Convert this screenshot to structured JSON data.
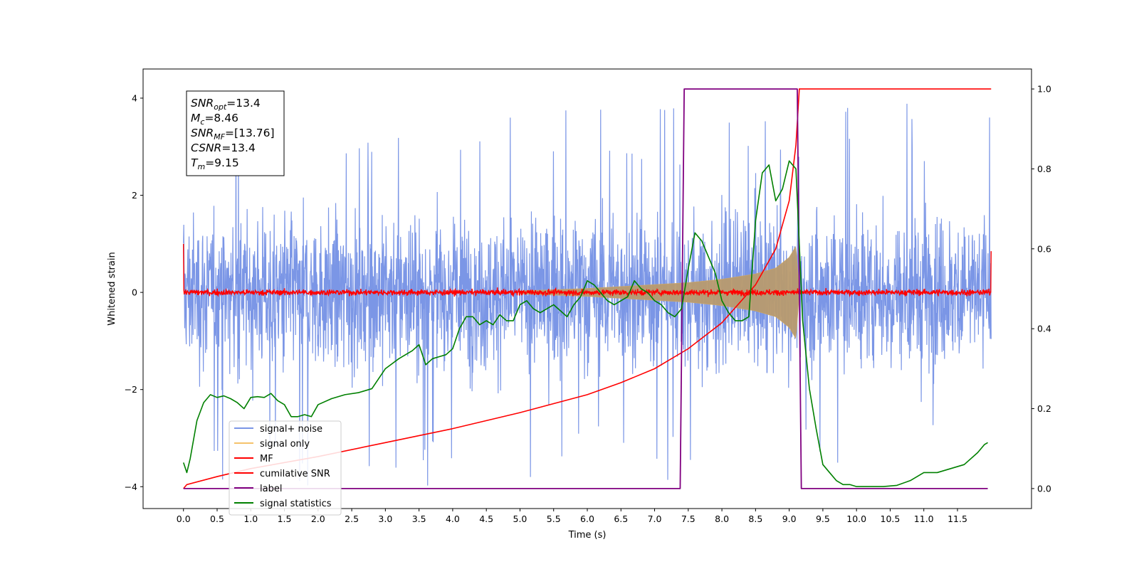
{
  "chart_data": {
    "type": "line",
    "xlabel": "Time (s)",
    "ylabel_left": "Whitened strain",
    "xlim": [
      -0.6,
      12.6
    ],
    "ylim_left": [
      -4.45,
      4.6
    ],
    "ylim_right": [
      -0.05,
      1.05
    ],
    "x_ticks": [
      0.0,
      0.5,
      1.0,
      1.5,
      2.0,
      2.5,
      3.0,
      3.5,
      4.0,
      4.5,
      5.0,
      5.5,
      6.0,
      6.5,
      7.0,
      7.5,
      8.0,
      8.5,
      9.0,
      9.5,
      10.0,
      10.5,
      11.0,
      11.5
    ],
    "x_tick_labels": [
      "0.0",
      "0.5",
      "1.0",
      "1.5",
      "2.0",
      "2.5",
      "3.0",
      "3.5",
      "4.0",
      "4.5",
      "5.0",
      "5.5",
      "6.0",
      "6.5",
      "7.0",
      "7.5",
      "8.0",
      "8.5",
      "9.0",
      "9.5",
      "10.0",
      "10.5",
      "11.0",
      "11.5"
    ],
    "y_ticks_left": [
      -4,
      -2,
      0,
      2,
      4
    ],
    "y_tick_labels_left": [
      "−4",
      "−2",
      "0",
      "2",
      "4"
    ],
    "y_ticks_right": [
      0.0,
      0.2,
      0.4,
      0.6,
      0.8,
      1.0
    ],
    "y_tick_labels_right": [
      "0.0",
      "0.2",
      "0.4",
      "0.6",
      "0.8",
      "1.0"
    ],
    "legend_position": "lower-left",
    "info_box": {
      "lines": [
        {
          "base": "SNR",
          "sub": "opt",
          "rest": "=13.4"
        },
        {
          "base": "M",
          "sub": "c",
          "rest": "=8.46"
        },
        {
          "base": "SNR",
          "sub": "MF",
          "rest": "=[13.76]"
        },
        {
          "base": "CSNR",
          "sub": "",
          "rest": "=13.4"
        },
        {
          "base": "T",
          "sub": "m",
          "rest": "=9.15"
        }
      ]
    },
    "series": [
      {
        "name": "signal+ noise",
        "axis": "left",
        "color": "#7b96e6",
        "kind": "noise-band",
        "x_range": [
          0.0,
          12.0
        ],
        "amplitude_typical": 1.5,
        "amplitude_max": 4.0
      },
      {
        "name": "signal only",
        "axis": "left",
        "color": "#f5c26b",
        "kind": "chirp-envelope",
        "x_range": [
          5.0,
          9.15
        ],
        "envelope": {
          "x": [
            5.0,
            6.0,
            7.0,
            7.5,
            8.0,
            8.5,
            8.8,
            9.0,
            9.1,
            9.15
          ],
          "amp": [
            0.03,
            0.08,
            0.16,
            0.2,
            0.27,
            0.38,
            0.5,
            0.72,
            0.95,
            0.0
          ]
        }
      },
      {
        "name": "MF",
        "axis": "left",
        "color": "#ff0000",
        "kind": "noise-band",
        "x_range": [
          0.0,
          12.0
        ],
        "amplitude_typical": 0.07,
        "edge_values": {
          "start": 1.0,
          "end": 0.85
        }
      },
      {
        "name": "cumilative SNR",
        "axis": "right",
        "color": "#ff0000",
        "x": [
          0.0,
          0.05,
          0.5,
          1.0,
          2.0,
          3.0,
          4.0,
          5.0,
          6.0,
          6.5,
          7.0,
          7.5,
          8.0,
          8.5,
          8.8,
          9.0,
          9.1,
          9.15,
          12.0
        ],
        "y": [
          0.0,
          0.01,
          0.03,
          0.05,
          0.08,
          0.115,
          0.15,
          0.19,
          0.235,
          0.265,
          0.3,
          0.35,
          0.415,
          0.51,
          0.6,
          0.72,
          0.86,
          1.0,
          1.0
        ]
      },
      {
        "name": "label",
        "axis": "right",
        "color": "#800080",
        "x": [
          0.0,
          7.38,
          7.44,
          9.12,
          9.18,
          11.95
        ],
        "y": [
          0.0,
          0.0,
          1.0,
          1.0,
          0.0,
          0.0
        ]
      },
      {
        "name": "signal statistics",
        "axis": "right",
        "color": "#008000",
        "x": [
          0.0,
          0.05,
          0.1,
          0.2,
          0.3,
          0.4,
          0.5,
          0.6,
          0.7,
          0.8,
          0.9,
          1.0,
          1.1,
          1.2,
          1.3,
          1.4,
          1.5,
          1.6,
          1.7,
          1.8,
          1.9,
          2.0,
          2.2,
          2.4,
          2.6,
          2.8,
          3.0,
          3.2,
          3.4,
          3.5,
          3.6,
          3.7,
          3.8,
          3.9,
          4.0,
          4.1,
          4.2,
          4.3,
          4.4,
          4.5,
          4.6,
          4.7,
          4.8,
          4.9,
          5.0,
          5.1,
          5.2,
          5.3,
          5.4,
          5.5,
          5.6,
          5.7,
          5.8,
          5.9,
          6.0,
          6.1,
          6.2,
          6.3,
          6.4,
          6.5,
          6.6,
          6.7,
          6.8,
          6.9,
          7.0,
          7.1,
          7.2,
          7.3,
          7.4,
          7.5,
          7.6,
          7.7,
          7.8,
          7.9,
          8.0,
          8.1,
          8.2,
          8.3,
          8.4,
          8.5,
          8.6,
          8.7,
          8.8,
          8.9,
          9.0,
          9.1,
          9.2,
          9.3,
          9.4,
          9.5,
          9.6,
          9.7,
          9.8,
          9.9,
          10.0,
          10.2,
          10.4,
          10.6,
          10.8,
          11.0,
          11.2,
          11.4,
          11.6,
          11.8,
          11.9,
          11.95
        ],
        "y": [
          0.065,
          0.04,
          0.075,
          0.17,
          0.215,
          0.235,
          0.228,
          0.232,
          0.225,
          0.215,
          0.2,
          0.228,
          0.23,
          0.228,
          0.238,
          0.22,
          0.21,
          0.18,
          0.18,
          0.185,
          0.18,
          0.21,
          0.225,
          0.235,
          0.24,
          0.25,
          0.3,
          0.325,
          0.345,
          0.36,
          0.31,
          0.325,
          0.33,
          0.335,
          0.35,
          0.4,
          0.43,
          0.43,
          0.41,
          0.42,
          0.41,
          0.435,
          0.42,
          0.42,
          0.46,
          0.47,
          0.45,
          0.44,
          0.45,
          0.46,
          0.445,
          0.43,
          0.46,
          0.48,
          0.52,
          0.51,
          0.49,
          0.47,
          0.46,
          0.47,
          0.48,
          0.52,
          0.5,
          0.49,
          0.47,
          0.46,
          0.44,
          0.43,
          0.45,
          0.55,
          0.64,
          0.62,
          0.58,
          0.54,
          0.47,
          0.44,
          0.42,
          0.42,
          0.43,
          0.67,
          0.79,
          0.81,
          0.72,
          0.75,
          0.82,
          0.8,
          0.42,
          0.25,
          0.15,
          0.06,
          0.04,
          0.02,
          0.01,
          0.01,
          0.005,
          0.005,
          0.005,
          0.008,
          0.02,
          0.04,
          0.04,
          0.05,
          0.06,
          0.09,
          0.11,
          0.115
        ]
      }
    ]
  }
}
